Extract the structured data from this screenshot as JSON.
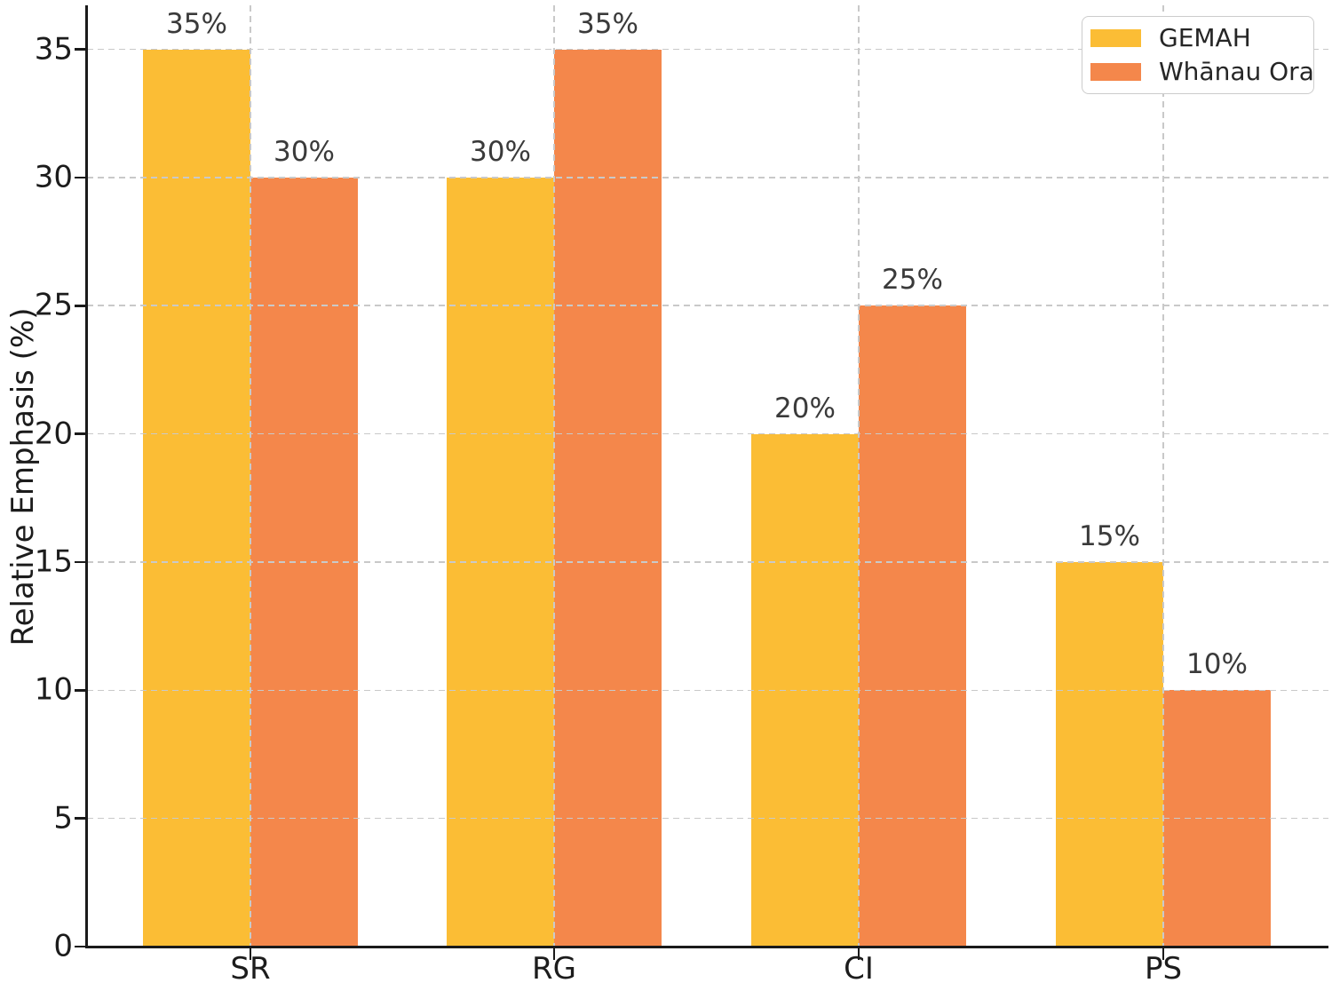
{
  "chart_data": {
    "type": "bar",
    "title": "",
    "categories": [
      "SR",
      "RG",
      "CI",
      "PS"
    ],
    "series": [
      {
        "name": "GEMAH",
        "color": "#FBBD35",
        "values": [
          35,
          30,
          20,
          15
        ]
      },
      {
        "name": "Whānau Ora",
        "color": "#F4874B",
        "values": [
          30,
          35,
          25,
          10
        ]
      }
    ],
    "data_labels": [
      [
        "35%",
        "30%",
        "20%",
        "15%"
      ],
      [
        "30%",
        "35%",
        "25%",
        "10%"
      ]
    ],
    "xlabel": "",
    "ylabel": "Relative Emphasis (%)",
    "yticks": [
      "0",
      "5",
      "10",
      "15",
      "20",
      "25",
      "30",
      "35"
    ],
    "ylim": [
      0,
      36.7
    ],
    "grid": "dashed-both-axes-above-bars",
    "legend_position": "upper-right"
  },
  "colors": {
    "gemah": "#FBBD35",
    "whanau_ora": "#F4874B",
    "grid": "#c9c9c9",
    "axis": "#1a1a1a",
    "tick_text": "#1c1c1c",
    "value_label_text": "#3a3a3a",
    "legend_border": "#cccccc",
    "background": "#ffffff"
  }
}
